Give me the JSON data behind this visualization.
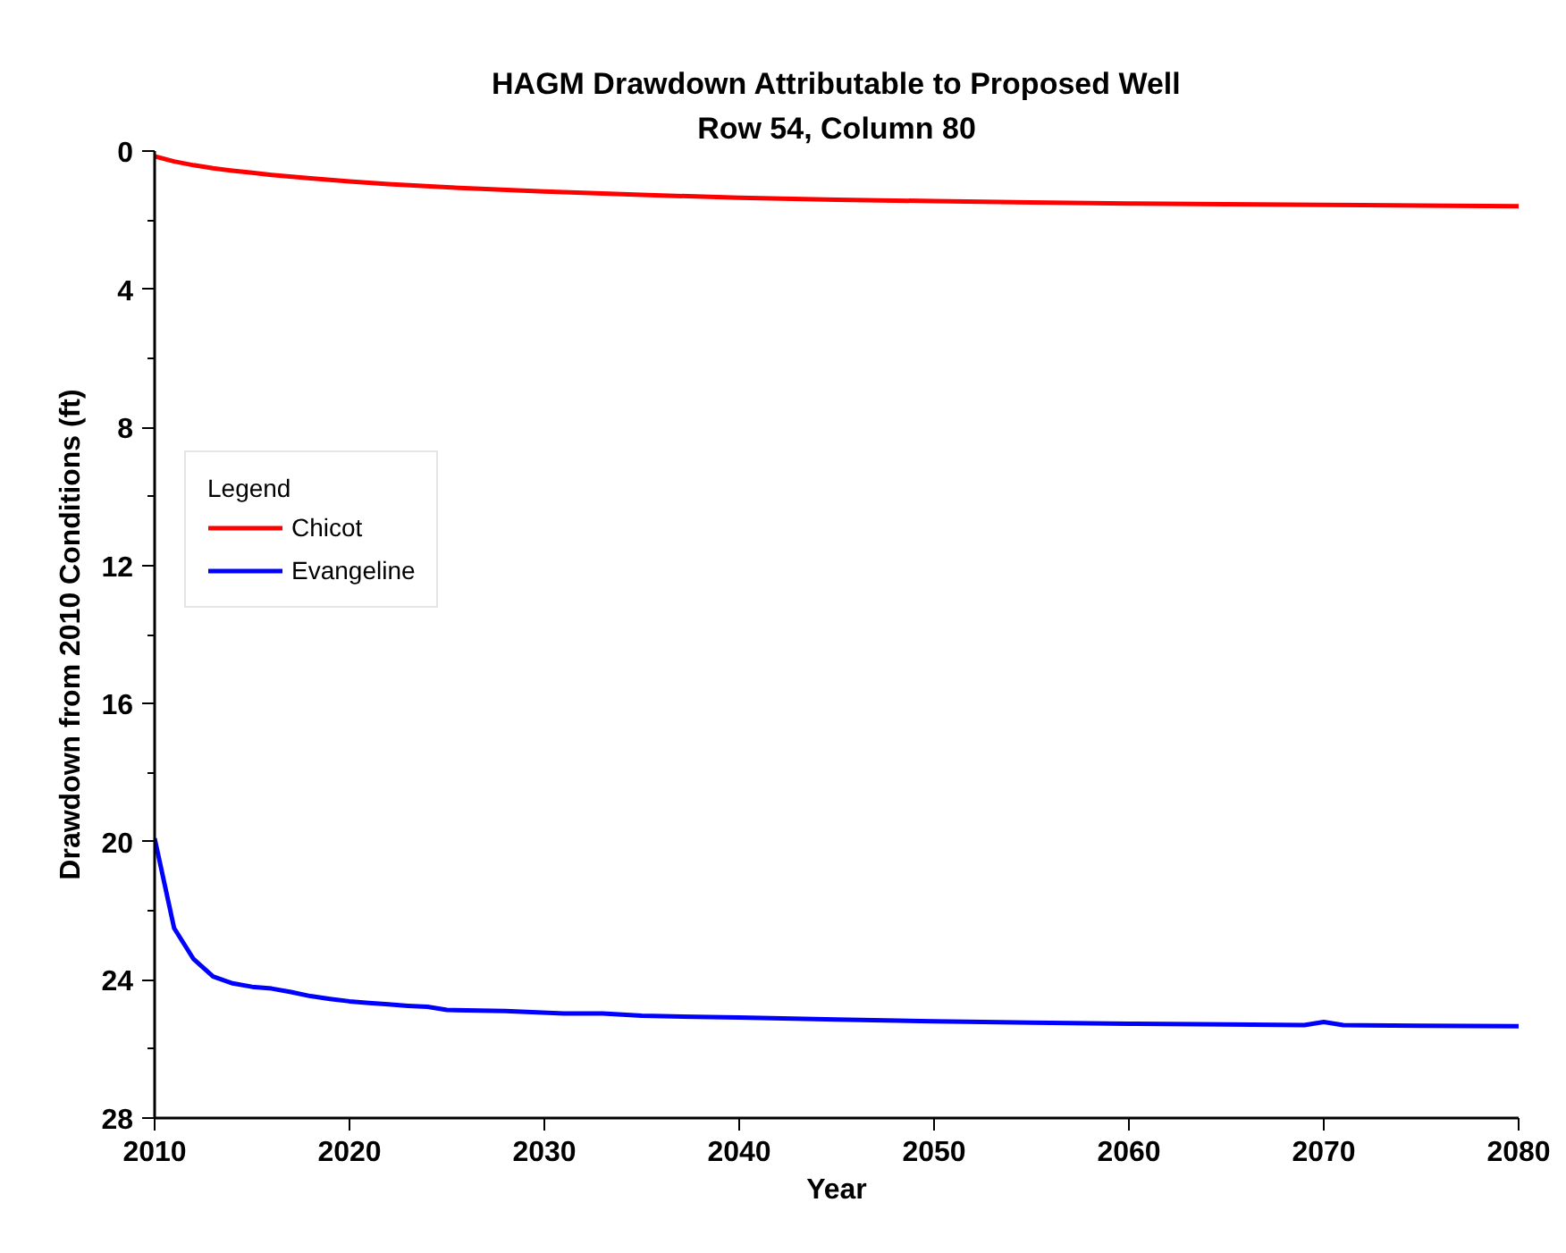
{
  "chart_data": {
    "type": "line",
    "title": "HAGM Drawdown Attributable to Proposed Well",
    "subtitle": "Row 54, Column 80",
    "xlabel": "Year",
    "ylabel": "Drawdown from 2010 Conditions (ft)",
    "legend_title": "Legend",
    "legend": "left",
    "xlim": [
      2010,
      2080
    ],
    "xticks": [
      2010,
      2020,
      2030,
      2040,
      2050,
      2060,
      2070,
      2080
    ],
    "ylim": [
      28,
      0
    ],
    "yticks": [
      0,
      {
        "value": 2,
        "label": null
      },
      4,
      {
        "value": 6,
        "label": null
      },
      8,
      {
        "value": 10,
        "label": null
      },
      12,
      {
        "value": 14,
        "label": null
      },
      16,
      {
        "value": 18,
        "label": null
      },
      20,
      {
        "value": 22,
        "label": null
      },
      24,
      {
        "value": 26,
        "label": null
      },
      28
    ],
    "series": [
      {
        "name": "Chicot",
        "color": "#ff0000",
        "x": [
          2010,
          2011,
          2012,
          2013,
          2014,
          2015,
          2016,
          2018,
          2020,
          2022,
          2025,
          2030,
          2035,
          2040,
          2045,
          2050,
          2055,
          2060,
          2065,
          2070,
          2075,
          2080
        ],
        "values": [
          0.15,
          0.3,
          0.41,
          0.5,
          0.57,
          0.63,
          0.69,
          0.79,
          0.88,
          0.96,
          1.05,
          1.17,
          1.27,
          1.35,
          1.41,
          1.45,
          1.49,
          1.52,
          1.54,
          1.56,
          1.58,
          1.6
        ]
      },
      {
        "name": "Evangeline",
        "color": "#0000ff",
        "x": [
          2010,
          2011,
          2012,
          2013,
          2014,
          2015,
          2016,
          2017,
          2018,
          2019,
          2020,
          2021,
          2022,
          2023,
          2024,
          2025,
          2028,
          2031,
          2033,
          2035,
          2040,
          2045,
          2050,
          2055,
          2060,
          2065,
          2069,
          2070,
          2071,
          2075,
          2080
        ],
        "values": [
          19.9,
          22.5,
          23.4,
          23.9,
          24.1,
          24.2,
          24.25,
          24.35,
          24.47,
          24.55,
          24.62,
          24.67,
          24.71,
          24.75,
          24.78,
          24.87,
          24.9,
          24.97,
          24.97,
          25.04,
          25.09,
          25.15,
          25.2,
          25.24,
          25.27,
          25.29,
          25.31,
          25.22,
          25.31,
          25.33,
          25.34
        ]
      }
    ]
  }
}
